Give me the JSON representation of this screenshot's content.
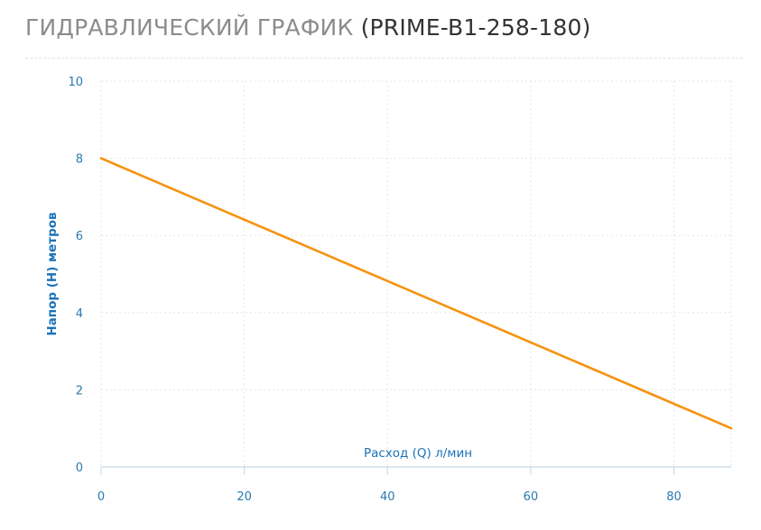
{
  "title": {
    "main": "ГИДРАВЛИЧЕСКИЙ ГРАФИК",
    "model": "(PRIME-B1-258-180)"
  },
  "colors": {
    "series": "#f5920f",
    "axis_text": "#2a7ab0",
    "title_gray": "#8c8c8c"
  },
  "chart_data": {
    "type": "line",
    "title": "",
    "xlabel": "Расход (Q) л/мин",
    "ylabel": "Напор (H) метров",
    "xlim": [
      0,
      88
    ],
    "ylim": [
      0,
      10
    ],
    "xticks": [
      0,
      20,
      40,
      60,
      80
    ],
    "yticks": [
      0,
      2,
      4,
      6,
      8,
      10
    ],
    "grid": true,
    "series": [
      {
        "x": [
          0,
          88
        ],
        "y": [
          8,
          1
        ]
      }
    ]
  }
}
